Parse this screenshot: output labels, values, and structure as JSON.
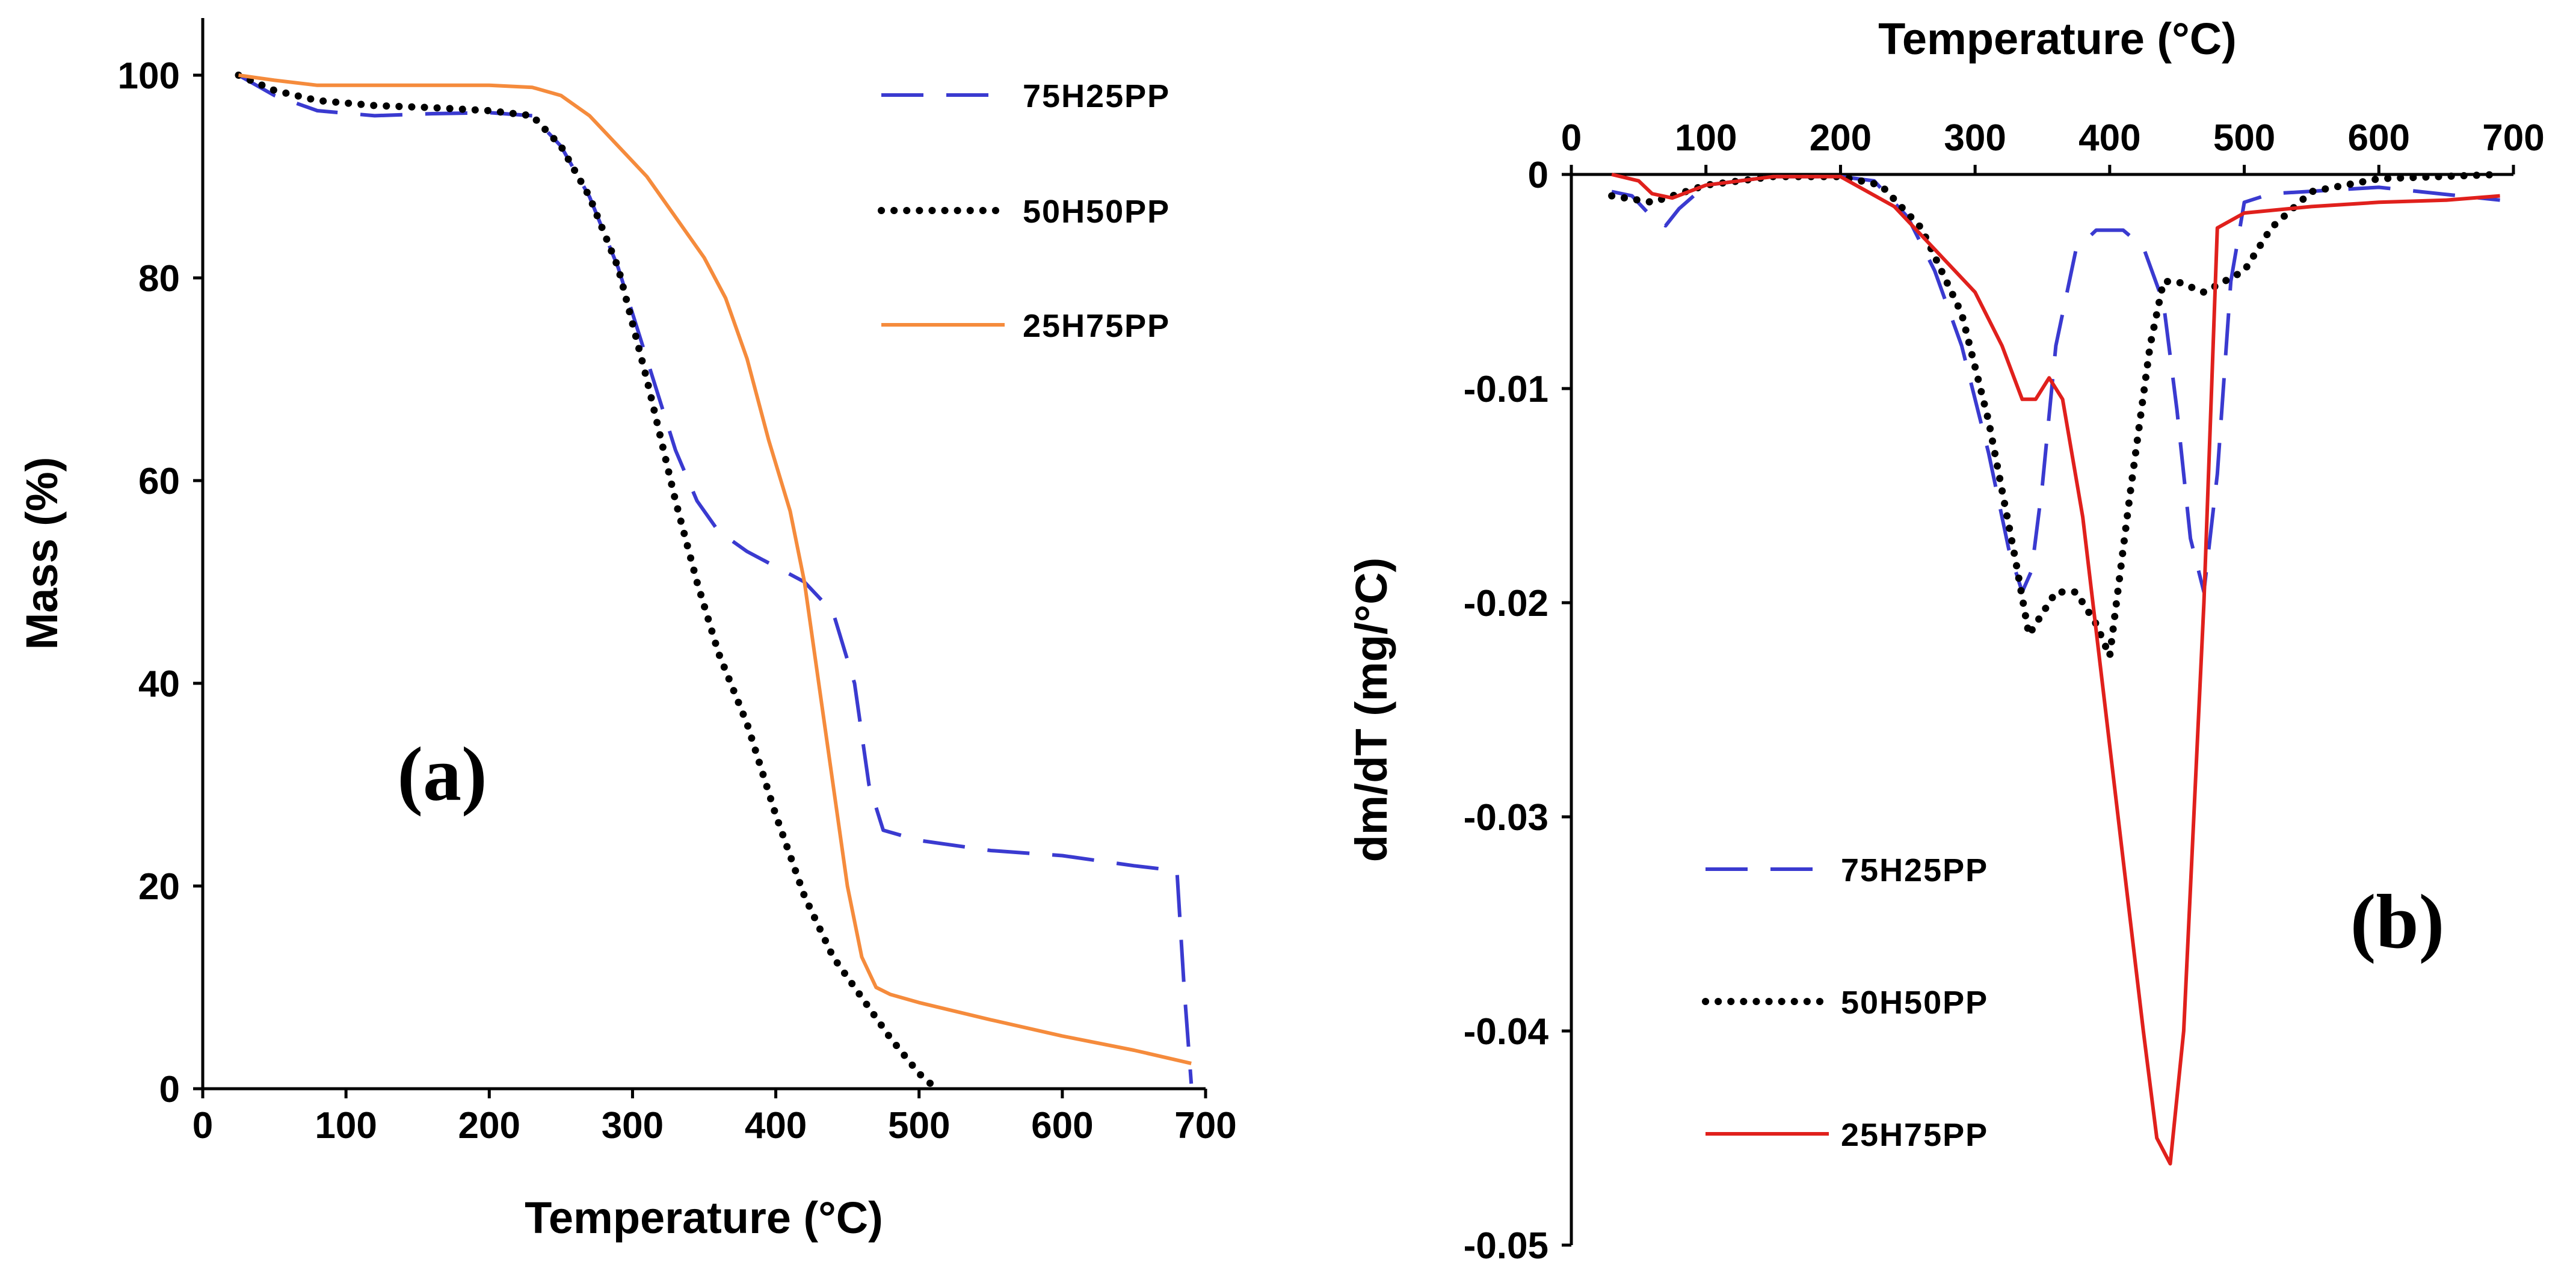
{
  "chart_data": [
    {
      "type": "line",
      "panel_label": "(a)",
      "xlabel": "Temperature (°C)",
      "ylabel": "Mass (%)",
      "xlim": [
        0,
        700
      ],
      "ylim": [
        0,
        100
      ],
      "xticks": [
        "0",
        "100",
        "200",
        "300",
        "400",
        "500",
        "600",
        "700"
      ],
      "yticks": [
        "0",
        "20",
        "40",
        "60",
        "80",
        "100"
      ],
      "legend_position": "top-right",
      "series": [
        {
          "name": "75H25PP",
          "style": "dashed",
          "color": "#3a3ad0",
          "x": [
            25,
            50,
            80,
            120,
            160,
            200,
            230,
            250,
            270,
            290,
            310,
            330,
            345,
            360,
            380,
            400,
            420,
            440,
            455,
            465,
            475,
            500,
            550,
            600,
            650,
            680,
            685,
            690
          ],
          "y": [
            100,
            98,
            96.5,
            96,
            96.2,
            96.3,
            96,
            93,
            88,
            81,
            72,
            63,
            58,
            55,
            53,
            51.5,
            50,
            47,
            40,
            30,
            25.5,
            24.5,
            23.5,
            23,
            22,
            21.5,
            10,
            0.5
          ]
        },
        {
          "name": "50H50PP",
          "style": "dotted",
          "color": "#000000",
          "x": [
            25,
            50,
            80,
            120,
            160,
            200,
            230,
            250,
            270,
            290,
            310,
            330,
            345,
            360,
            380,
            400,
            420,
            440,
            460,
            480,
            500,
            512
          ],
          "y": [
            100,
            98.5,
            97.5,
            97,
            96.8,
            96.5,
            96,
            93,
            88,
            81,
            70,
            58,
            50,
            43,
            36,
            27,
            19,
            13,
            9,
            5,
            1.5,
            0
          ]
        },
        {
          "name": "25H75PP",
          "style": "solid",
          "color": "#f58b3c",
          "x": [
            25,
            50,
            80,
            120,
            160,
            200,
            230,
            250,
            270,
            290,
            310,
            330,
            350,
            365,
            380,
            395,
            410,
            420,
            430,
            440,
            450,
            460,
            470,
            480,
            500,
            550,
            600,
            650,
            690
          ],
          "y": [
            100,
            99.5,
            99,
            99,
            99,
            99,
            98.8,
            98,
            96,
            93,
            90,
            86,
            82,
            78,
            72,
            64,
            57,
            50,
            40,
            30,
            20,
            13,
            10,
            9.3,
            8.5,
            6.8,
            5.2,
            3.8,
            2.5
          ]
        }
      ]
    },
    {
      "type": "line",
      "panel_label": "(b)",
      "xlabel": "Temperature (°C)",
      "ylabel": "dm/dT (mg/°C)",
      "xlim": [
        0,
        700
      ],
      "ylim": [
        -0.05,
        0
      ],
      "x_axis_position": "top",
      "xticks": [
        "0",
        "100",
        "200",
        "300",
        "400",
        "500",
        "600",
        "700"
      ],
      "yticks": [
        "0",
        "-0.01",
        "-0.02",
        "-0.03",
        "-0.04",
        "-0.05"
      ],
      "legend_position": "bottom-left",
      "series": [
        {
          "name": "75H25PP",
          "style": "dashed",
          "color": "#3a3ad0",
          "x": [
            30,
            45,
            60,
            70,
            80,
            100,
            150,
            200,
            225,
            250,
            270,
            290,
            310,
            325,
            335,
            342,
            350,
            360,
            375,
            390,
            410,
            425,
            440,
            450,
            460,
            470,
            480,
            490,
            500,
            520,
            600,
            690
          ],
          "y": [
            -0.0008,
            -0.001,
            -0.002,
            -0.0024,
            -0.0016,
            -0.0005,
            -0.0001,
            -0.0001,
            -0.0003,
            -0.002,
            -0.0045,
            -0.008,
            -0.013,
            -0.0175,
            -0.0195,
            -0.0185,
            -0.0145,
            -0.008,
            -0.0035,
            -0.0026,
            -0.0026,
            -0.0034,
            -0.006,
            -0.011,
            -0.017,
            -0.0195,
            -0.014,
            -0.005,
            -0.0013,
            -0.0009,
            -0.0006,
            -0.0012
          ]
        },
        {
          "name": "50H50PP",
          "style": "dotted",
          "color": "#000000",
          "x": [
            30,
            60,
            100,
            150,
            200,
            230,
            260,
            290,
            310,
            330,
            340,
            350,
            360,
            375,
            390,
            400,
            415,
            430,
            440,
            450,
            470,
            500,
            520,
            550,
            600,
            690
          ],
          "y": [
            -0.001,
            -0.0013,
            -0.0005,
            -0.0001,
            -0.0001,
            -0.0005,
            -0.0025,
            -0.0065,
            -0.0115,
            -0.018,
            -0.0215,
            -0.0205,
            -0.0195,
            -0.0195,
            -0.021,
            -0.0225,
            -0.015,
            -0.008,
            -0.005,
            -0.005,
            -0.0055,
            -0.0045,
            -0.0025,
            -0.0008,
            -0.0002,
            0
          ]
        },
        {
          "name": "25H75PP",
          "style": "solid",
          "color": "#e0201c",
          "x": [
            30,
            50,
            60,
            75,
            100,
            150,
            200,
            240,
            270,
            300,
            320,
            335,
            345,
            355,
            365,
            380,
            395,
            410,
            425,
            435,
            445,
            455,
            470,
            480,
            500,
            550,
            600,
            650,
            690
          ],
          "y": [
            0,
            -0.0003,
            -0.0009,
            -0.0011,
            -0.0005,
            -0.0001,
            -0.0001,
            -0.0015,
            -0.0035,
            -0.0055,
            -0.008,
            -0.0105,
            -0.0105,
            -0.0095,
            -0.0105,
            -0.016,
            -0.024,
            -0.032,
            -0.04,
            -0.045,
            -0.0462,
            -0.04,
            -0.02,
            -0.0025,
            -0.0018,
            -0.0015,
            -0.0013,
            -0.0012,
            -0.001
          ]
        }
      ]
    }
  ]
}
